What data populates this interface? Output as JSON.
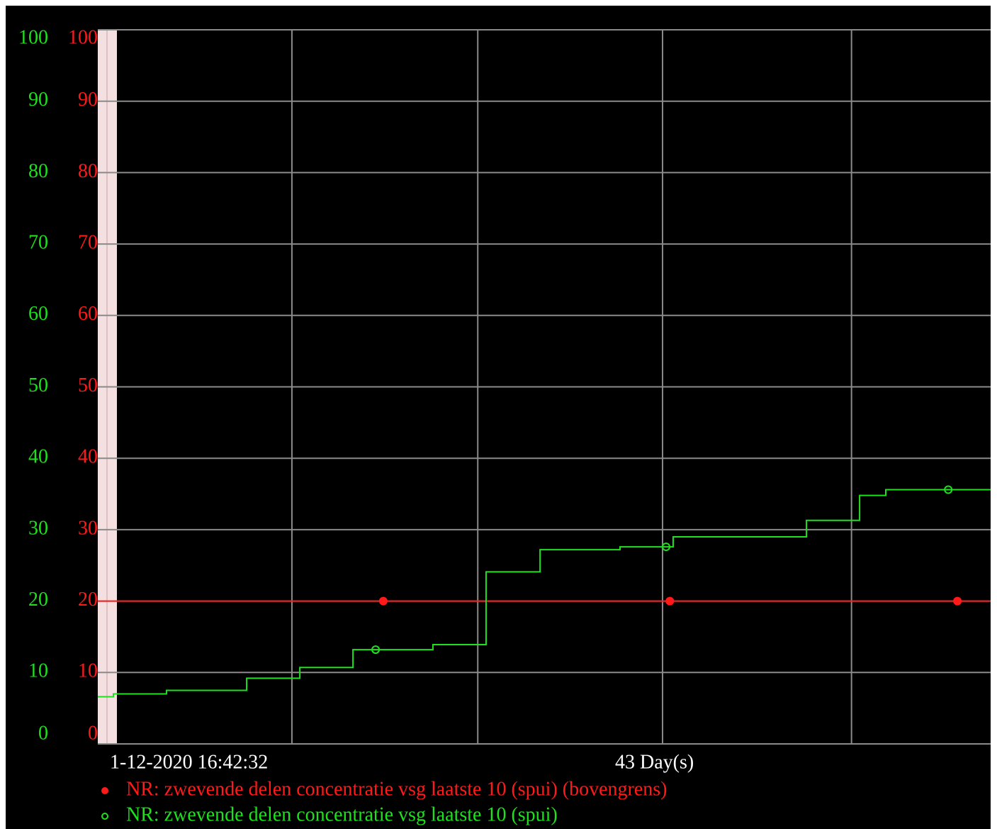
{
  "chart_data": {
    "type": "step",
    "x_start_label": "1-12-2020 16:42:32",
    "x_span_label": "43 Day(s)",
    "xlim": [
      0,
      43
    ],
    "xgrid": [
      9.35,
      18.3,
      27.2,
      36.3
    ],
    "ylim": [
      0,
      100
    ],
    "yticks": [
      0,
      10,
      20,
      30,
      40,
      50,
      60,
      70,
      80,
      90,
      100
    ],
    "y2lim": [
      0,
      100
    ],
    "y2ticks": [
      0,
      10,
      20,
      30,
      40,
      50,
      60,
      70,
      80,
      90,
      100
    ],
    "grid": true,
    "legend": "bottom",
    "series": [
      {
        "name": "NR: zwevende delen concentratie vsg laatste 10 (spui) (bovengrens)",
        "color": "#ff1a1a",
        "axis": "y2",
        "marker": "filled",
        "x": [
          0,
          43
        ],
        "values": [
          20,
          20
        ],
        "marker_x": [
          13.75,
          27.55,
          41.4
        ]
      },
      {
        "name": "NR: zwevende delen concentratie vsg laatste 10 (spui)",
        "color": "#1ee01e",
        "axis": "y",
        "marker": "open",
        "x": [
          0,
          0.75,
          3.31,
          7.17,
          9.73,
          12.29,
          16.14,
          18.7,
          21.3,
          25.15,
          27.71,
          34.13,
          36.69,
          37.95,
          43
        ],
        "values": [
          6.6,
          7.0,
          7.5,
          9.2,
          10.7,
          13.2,
          13.9,
          24.1,
          27.2,
          27.6,
          29.0,
          31.3,
          34.8,
          35.6,
          35.6
        ],
        "marker_x": [
          13.38,
          27.37,
          40.96
        ]
      }
    ]
  }
}
